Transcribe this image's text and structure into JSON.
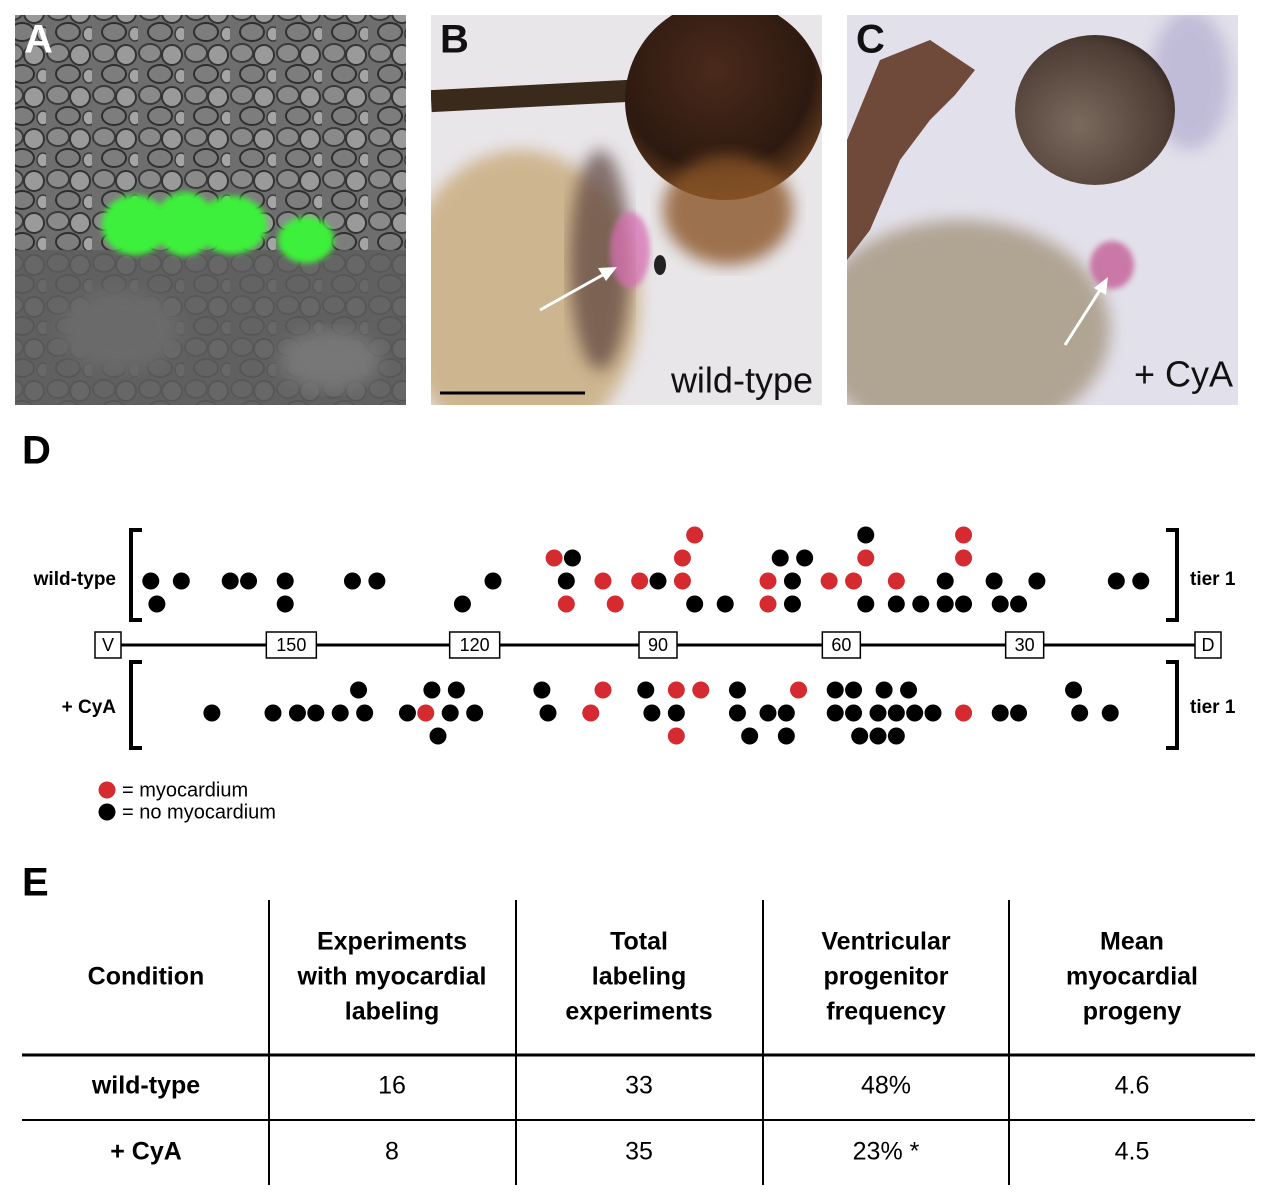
{
  "panels": {
    "a": {
      "label": "A"
    },
    "b": {
      "label": "B",
      "caption": "wild-type"
    },
    "c": {
      "label": "C",
      "caption": "+ CyA"
    }
  },
  "panel_d": {
    "label": "D",
    "axis": {
      "lim": [
        180,
        0
      ],
      "ticks": [
        {
          "value": 180,
          "label": "V"
        },
        150,
        120,
        90,
        60,
        30,
        {
          "value": 0,
          "label": "D"
        }
      ]
    },
    "rows": [
      {
        "label": "wild-type",
        "tier": "tier 1",
        "lanes": [
          [
            {
              "x": 84,
              "myo": true
            },
            {
              "x": 56,
              "myo": false
            },
            {
              "x": 40,
              "myo": true
            }
          ],
          [
            {
              "x": 107,
              "myo": true
            },
            {
              "x": 104,
              "myo": false
            },
            {
              "x": 86,
              "myo": true
            },
            {
              "x": 70,
              "myo": false
            },
            {
              "x": 66,
              "myo": false
            },
            {
              "x": 56,
              "myo": true
            },
            {
              "x": 40,
              "myo": true
            }
          ],
          [
            {
              "x": 173,
              "myo": false
            },
            {
              "x": 168,
              "myo": false
            },
            {
              "x": 160,
              "myo": false
            },
            {
              "x": 157,
              "myo": false
            },
            {
              "x": 151,
              "myo": false
            },
            {
              "x": 140,
              "myo": false
            },
            {
              "x": 136,
              "myo": false
            },
            {
              "x": 117,
              "myo": false
            },
            {
              "x": 105,
              "myo": false
            },
            {
              "x": 99,
              "myo": true
            },
            {
              "x": 93,
              "myo": true
            },
            {
              "x": 90,
              "myo": false
            },
            {
              "x": 86,
              "myo": true
            },
            {
              "x": 72,
              "myo": true
            },
            {
              "x": 68,
              "myo": false
            },
            {
              "x": 62,
              "myo": true
            },
            {
              "x": 58,
              "myo": true
            },
            {
              "x": 51,
              "myo": true
            },
            {
              "x": 43,
              "myo": false
            },
            {
              "x": 35,
              "myo": false
            },
            {
              "x": 28,
              "myo": false
            },
            {
              "x": 15,
              "myo": false
            },
            {
              "x": 11,
              "myo": false
            }
          ],
          [
            {
              "x": 172,
              "myo": false
            },
            {
              "x": 151,
              "myo": false
            },
            {
              "x": 122,
              "myo": false
            },
            {
              "x": 105,
              "myo": true
            },
            {
              "x": 97,
              "myo": true
            },
            {
              "x": 84,
              "myo": false
            },
            {
              "x": 79,
              "myo": false
            },
            {
              "x": 72,
              "myo": true
            },
            {
              "x": 68,
              "myo": false
            },
            {
              "x": 56,
              "myo": false
            },
            {
              "x": 51,
              "myo": false
            },
            {
              "x": 47,
              "myo": false
            },
            {
              "x": 43,
              "myo": false
            },
            {
              "x": 40,
              "myo": false
            },
            {
              "x": 34,
              "myo": false
            },
            {
              "x": 31,
              "myo": false
            }
          ]
        ]
      },
      {
        "label": "+ CyA",
        "tier": "tier 1",
        "lanes": [
          [
            {
              "x": 139,
              "myo": false
            },
            {
              "x": 127,
              "myo": false
            },
            {
              "x": 123,
              "myo": false
            },
            {
              "x": 109,
              "myo": false
            },
            {
              "x": 99,
              "myo": true
            },
            {
              "x": 92,
              "myo": false
            },
            {
              "x": 87,
              "myo": true
            },
            {
              "x": 83,
              "myo": true
            },
            {
              "x": 77,
              "myo": false
            },
            {
              "x": 67,
              "myo": true
            },
            {
              "x": 61,
              "myo": false
            },
            {
              "x": 58,
              "myo": false
            },
            {
              "x": 53,
              "myo": false
            },
            {
              "x": 49,
              "myo": false
            },
            {
              "x": 22,
              "myo": false
            }
          ],
          [
            {
              "x": 163,
              "myo": false
            },
            {
              "x": 153,
              "myo": false
            },
            {
              "x": 149,
              "myo": false
            },
            {
              "x": 146,
              "myo": false
            },
            {
              "x": 142,
              "myo": false
            },
            {
              "x": 138,
              "myo": false
            },
            {
              "x": 131,
              "myo": false
            },
            {
              "x": 128,
              "myo": true
            },
            {
              "x": 124,
              "myo": false
            },
            {
              "x": 120,
              "myo": false
            },
            {
              "x": 108,
              "myo": false
            },
            {
              "x": 101,
              "myo": true
            },
            {
              "x": 91,
              "myo": false
            },
            {
              "x": 87,
              "myo": false
            },
            {
              "x": 77,
              "myo": false
            },
            {
              "x": 72,
              "myo": false
            },
            {
              "x": 69,
              "myo": false
            },
            {
              "x": 61,
              "myo": false
            },
            {
              "x": 58,
              "myo": false
            },
            {
              "x": 54,
              "myo": false
            },
            {
              "x": 51,
              "myo": false
            },
            {
              "x": 48,
              "myo": false
            },
            {
              "x": 45,
              "myo": false
            },
            {
              "x": 40,
              "myo": true
            },
            {
              "x": 34,
              "myo": false
            },
            {
              "x": 31,
              "myo": false
            },
            {
              "x": 21,
              "myo": false
            },
            {
              "x": 16,
              "myo": false
            }
          ],
          [
            {
              "x": 126,
              "myo": false
            },
            {
              "x": 87,
              "myo": true
            },
            {
              "x": 75,
              "myo": false
            },
            {
              "x": 69,
              "myo": false
            },
            {
              "x": 57,
              "myo": false
            },
            {
              "x": 54,
              "myo": false
            },
            {
              "x": 51,
              "myo": false
            }
          ]
        ]
      }
    ],
    "legend": [
      {
        "text": "= myocardium",
        "myocardium": true,
        "color": "#d42a30"
      },
      {
        "text": "= no myocardium",
        "myocardium": false,
        "color": "#000000"
      }
    ]
  },
  "panel_e": {
    "label": "E",
    "table": {
      "header": [
        [
          "Condition"
        ],
        [
          "Experiments",
          "with myocardial",
          "labeling"
        ],
        [
          "Total",
          "labeling",
          "experiments"
        ],
        [
          "Ventricular",
          "progenitor",
          "frequency"
        ],
        [
          "Mean",
          "myocardial",
          "progeny"
        ]
      ],
      "rows": [
        [
          "wild-type",
          "16",
          "33",
          "48%",
          "4.6"
        ],
        [
          "+ CyA",
          "8",
          "35",
          "23% *",
          "4.5"
        ]
      ]
    }
  }
}
